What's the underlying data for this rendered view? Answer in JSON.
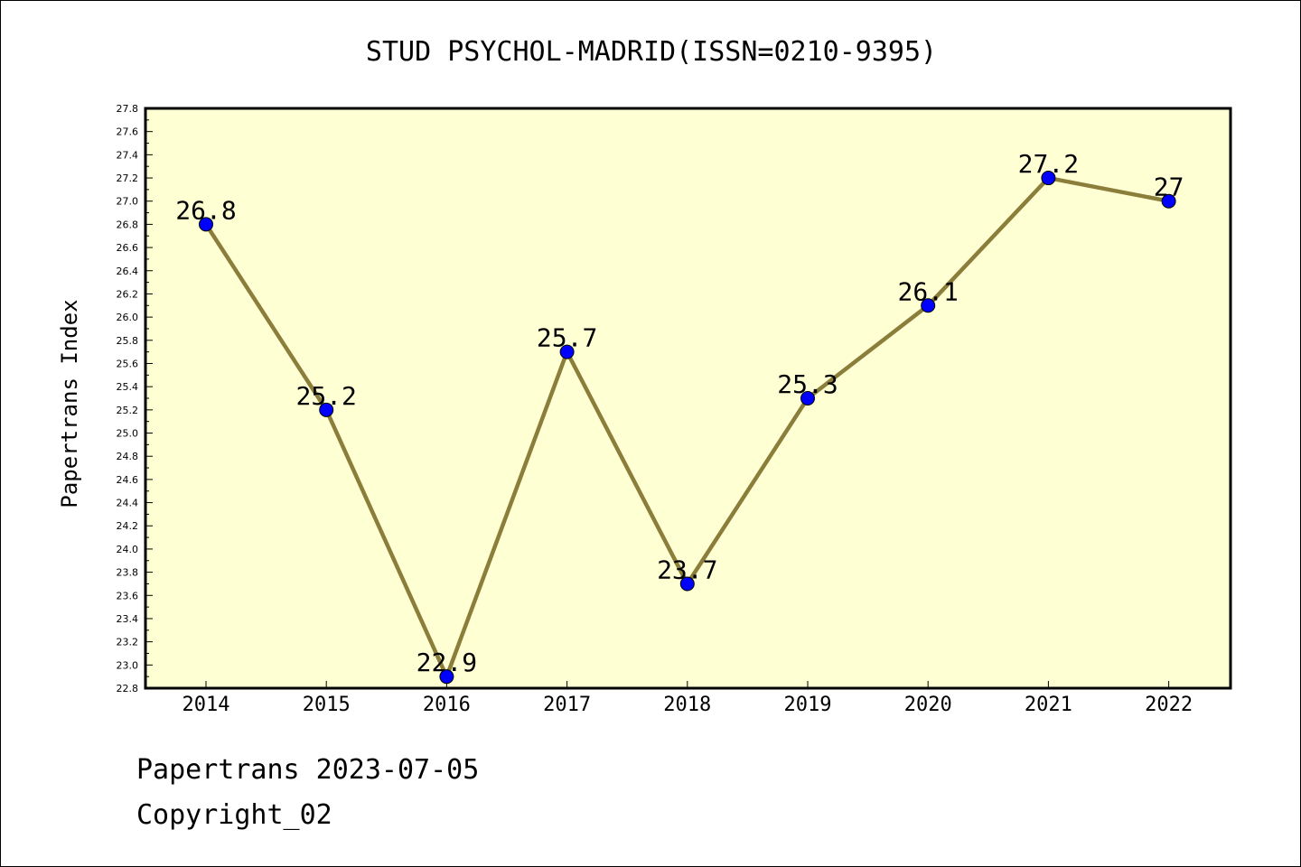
{
  "chart_data": {
    "type": "line",
    "title": "STUD PSYCHOL-MADRID(ISSN=0210-9395)",
    "ylabel": "Papertrans Index",
    "xlabel": "",
    "categories": [
      "2014",
      "2015",
      "2016",
      "2017",
      "2018",
      "2019",
      "2020",
      "2021",
      "2022"
    ],
    "series": [
      {
        "values": [
          26.8,
          25.2,
          22.9,
          25.7,
          23.7,
          25.3,
          26.1,
          27.2,
          27.0
        ],
        "labels": [
          "26.8",
          "25.2",
          "22.9",
          "25.7",
          "23.7",
          "25.3",
          "26.1",
          "27.2",
          "27"
        ]
      }
    ],
    "ylim": [
      22.8,
      27.8
    ],
    "y_ticks": [
      "22.8",
      "23.0",
      "23.2",
      "23.4",
      "23.6",
      "23.8",
      "24.0",
      "24.2",
      "24.4",
      "24.6",
      "24.8",
      "25.0",
      "25.2",
      "25.4",
      "25.6",
      "25.8",
      "26.0",
      "26.2",
      "26.4",
      "26.6",
      "26.8",
      "27.0",
      "27.2",
      "27.4",
      "27.6",
      "27.8"
    ],
    "grid": false,
    "legend": "none",
    "colors": {
      "plot_background": "#ffffd4",
      "line": "#8b7d3a",
      "marker": "#0000ff"
    }
  },
  "footer": {
    "stamp": "Papertrans 2023-07-05",
    "copyright": "Copyright_02"
  }
}
